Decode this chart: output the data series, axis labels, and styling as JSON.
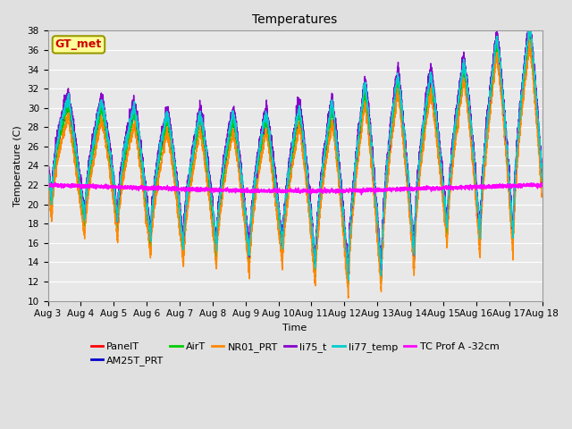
{
  "title": "Temperatures",
  "xlabel": "Time",
  "ylabel": "Temperature (C)",
  "ylim": [
    10,
    38
  ],
  "xlim": [
    0,
    15
  ],
  "x_tick_labels": [
    "Aug 3",
    "Aug 4",
    "Aug 5",
    "Aug 6",
    "Aug 7",
    "Aug 8",
    "Aug 9",
    "Aug 10",
    "Aug 11",
    "Aug 12",
    "Aug 13",
    "Aug 14",
    "Aug 15",
    "Aug 16",
    "Aug 17",
    "Aug 18"
  ],
  "bg_color": "#e0e0e0",
  "plot_bg_color": "#e8e8e8",
  "annotation_text": "GT_met",
  "annotation_color": "#cc0000",
  "annotation_bg": "#ffff99",
  "annotation_border": "#999900",
  "series": [
    {
      "name": "PanelT",
      "color": "#ff0000"
    },
    {
      "name": "AM25T_PRT",
      "color": "#0000cc"
    },
    {
      "name": "AirT",
      "color": "#00cc00"
    },
    {
      "name": "NR01_PRT",
      "color": "#ff8800"
    },
    {
      "name": "li75_t",
      "color": "#8800cc"
    },
    {
      "name": "li77_temp",
      "color": "#00cccc"
    },
    {
      "name": "TC Prof A -32cm",
      "color": "#ff00ff"
    }
  ],
  "linewidth": 1.0,
  "title_fontsize": 10,
  "label_fontsize": 8,
  "tick_fontsize": 7.5,
  "legend_fontsize": 8,
  "day_peaks": [
    33,
    29,
    31,
    29,
    29,
    29,
    29,
    29,
    30,
    30,
    33,
    33,
    33,
    35,
    38,
    38
  ],
  "day_mins": [
    20,
    18,
    18,
    16,
    15,
    15,
    14,
    15,
    13,
    12,
    12,
    14,
    17,
    16,
    16,
    16
  ],
  "tc_prof_vals": [
    22.0,
    21.9,
    21.8,
    21.7,
    21.6,
    21.5,
    21.4,
    21.4,
    21.4,
    21.4,
    21.5,
    21.6,
    21.7,
    21.8,
    21.9,
    22.0
  ]
}
